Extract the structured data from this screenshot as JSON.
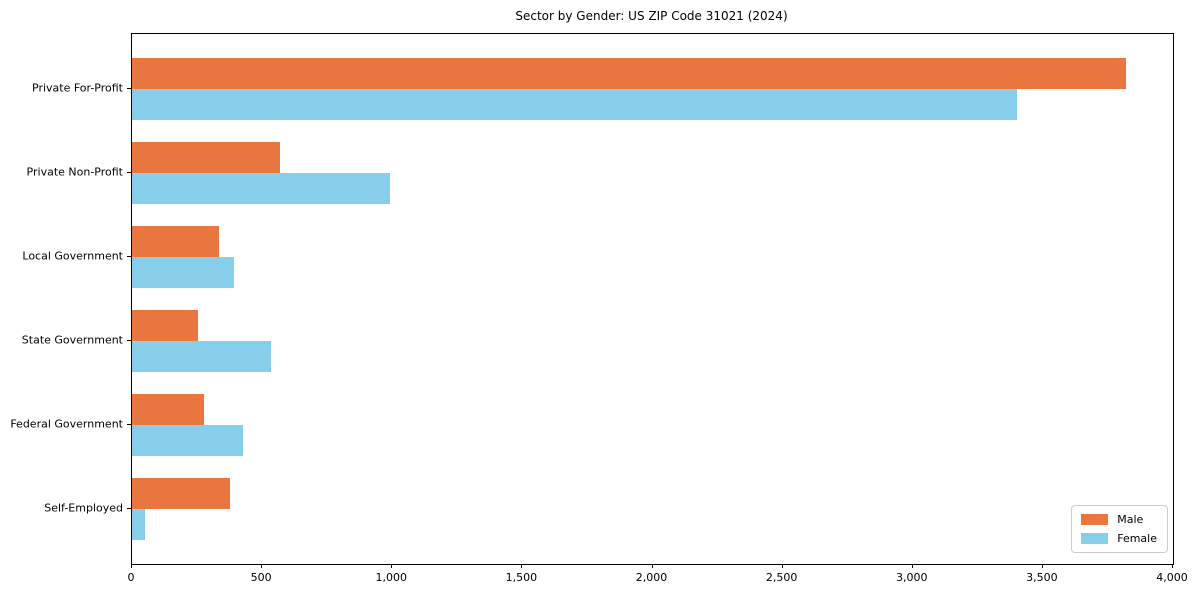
{
  "title": "Sector by Gender: US ZIP Code 31021 (2024)",
  "chart_data": {
    "type": "bar",
    "orientation": "horizontal",
    "title": "Sector by Gender: US ZIP Code 31021 (2024)",
    "categories": [
      "Private For-Profit",
      "Private Non-Profit",
      "Local Government",
      "State Government",
      "Federal Government",
      "Self-Employed"
    ],
    "series": [
      {
        "name": "Male",
        "color": "#e8763e",
        "values": [
          3820,
          570,
          335,
          255,
          275,
          375
        ]
      },
      {
        "name": "Female",
        "color": "#87ceeb",
        "values": [
          3400,
          990,
          390,
          535,
          425,
          50
        ]
      }
    ],
    "xlabel": "",
    "ylabel": "",
    "xlim": [
      0,
      4000
    ],
    "xticks": [
      0,
      500,
      1000,
      1500,
      2000,
      2500,
      3000,
      3500,
      4000
    ],
    "xtick_labels": [
      "0",
      "500",
      "1,000",
      "1,500",
      "2,000",
      "2,500",
      "3,000",
      "3,500",
      "4,000"
    ],
    "grid": false,
    "legend_position": "lower right",
    "axis_color": "#000000",
    "background_color": "#ffffff"
  }
}
